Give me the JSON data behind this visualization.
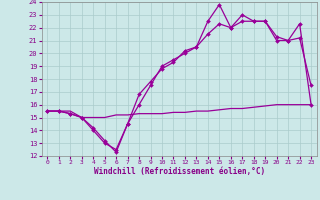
{
  "title": "",
  "xlabel": "Windchill (Refroidissement éolien,°C)",
  "ylabel": "",
  "xlim": [
    -0.5,
    23.5
  ],
  "ylim": [
    12,
    24
  ],
  "yticks": [
    12,
    13,
    14,
    15,
    16,
    17,
    18,
    19,
    20,
    21,
    22,
    23,
    24
  ],
  "xticks": [
    0,
    1,
    2,
    3,
    4,
    5,
    6,
    7,
    8,
    9,
    10,
    11,
    12,
    13,
    14,
    15,
    16,
    17,
    18,
    19,
    20,
    21,
    22,
    23
  ],
  "bg_color": "#cce8e8",
  "grid_color": "#aacccc",
  "line_color": "#990099",
  "line1_x": [
    0,
    1,
    2,
    3,
    4,
    5,
    6,
    7,
    8,
    9,
    10,
    11,
    12,
    13,
    14,
    15,
    16,
    17,
    18,
    19,
    20,
    21,
    22,
    23
  ],
  "line1_y": [
    15.5,
    15.5,
    15.5,
    15.0,
    15.0,
    15.0,
    15.2,
    15.2,
    15.3,
    15.3,
    15.3,
    15.4,
    15.4,
    15.5,
    15.5,
    15.6,
    15.7,
    15.7,
    15.8,
    15.9,
    16.0,
    16.0,
    16.0,
    16.0
  ],
  "line2_x": [
    0,
    1,
    2,
    3,
    4,
    5,
    6,
    7,
    8,
    9,
    10,
    11,
    12,
    13,
    14,
    15,
    16,
    17,
    18,
    19,
    20,
    21,
    22,
    23
  ],
  "line2_y": [
    15.5,
    15.5,
    15.3,
    15.0,
    14.2,
    13.2,
    12.3,
    14.5,
    16.8,
    17.8,
    18.8,
    19.3,
    20.2,
    20.5,
    22.5,
    23.8,
    22.0,
    23.0,
    22.5,
    22.5,
    21.3,
    21.0,
    22.3,
    16.0
  ],
  "line3_x": [
    0,
    1,
    2,
    3,
    4,
    5,
    6,
    7,
    8,
    9,
    10,
    11,
    12,
    13,
    14,
    15,
    16,
    17,
    18,
    19,
    20,
    21,
    22,
    23
  ],
  "line3_y": [
    15.5,
    15.5,
    15.3,
    15.0,
    14.0,
    13.0,
    12.5,
    14.5,
    16.0,
    17.5,
    19.0,
    19.5,
    20.0,
    20.5,
    21.5,
    22.3,
    22.0,
    22.5,
    22.5,
    22.5,
    21.0,
    21.0,
    21.2,
    17.5
  ]
}
